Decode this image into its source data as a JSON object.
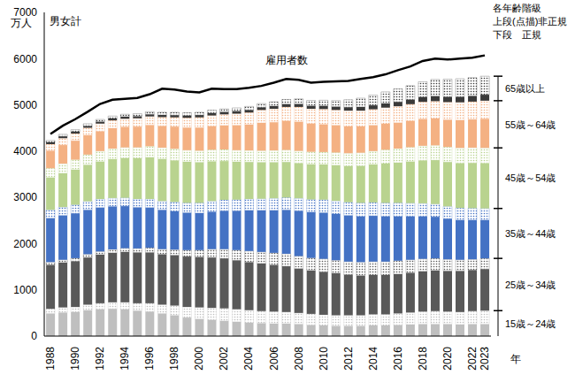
{
  "chart_data": {
    "type": "bar",
    "stacked": true,
    "y_unit_label": "万人",
    "x_label": "年",
    "annotations": [
      "男女計",
      "各年齢階級",
      "上段(点描)非正規",
      "下段　正規"
    ],
    "categories": [
      "1988",
      null,
      "1990",
      null,
      "1992",
      null,
      "1994",
      null,
      "1996",
      null,
      "1998",
      null,
      "2000",
      null,
      "2002",
      null,
      "2004",
      null,
      "2006",
      null,
      "2008",
      null,
      "2010",
      null,
      "2012",
      null,
      "2014",
      null,
      "2016",
      null,
      "2018",
      null,
      "2020",
      null,
      "2022",
      "2023"
    ],
    "ylim": [
      0,
      7000
    ],
    "yticks": [
      0,
      1000,
      2000,
      3000,
      4000,
      5000,
      6000,
      7000
    ],
    "series": [
      {
        "name": "15歳～24歳",
        "color": "#bfbfbf",
        "values": [
          490,
          510,
          520,
          560,
          580,
          590,
          580,
          550,
          530,
          490,
          450,
          400,
          370,
          350,
          330,
          310,
          290,
          280,
          270,
          270,
          260,
          240,
          230,
          220,
          220,
          220,
          230,
          230,
          240,
          250,
          260,
          260,
          260,
          250,
          260,
          260
        ]
      },
      {
        "name": "15歳～24歳",
        "color": "#bfbfbf",
        "marker": "dots",
        "values": [
          100,
          110,
          110,
          120,
          130,
          140,
          150,
          160,
          180,
          190,
          210,
          230,
          250,
          260,
          270,
          270,
          270,
          260,
          260,
          250,
          240,
          240,
          230,
          230,
          230,
          230,
          240,
          240,
          250,
          260,
          270,
          280,
          270,
          270,
          280,
          290
        ]
      },
      {
        "name": "25歳～34歳",
        "color": "#595959",
        "values": [
          950,
          970,
          990,
          1020,
          1050,
          1070,
          1090,
          1100,
          1100,
          1090,
          1090,
          1090,
          1090,
          1090,
          1080,
          1060,
          1040,
          1030,
          1010,
          990,
          960,
          940,
          930,
          910,
          880,
          860,
          850,
          850,
          850,
          860,
          870,
          880,
          880,
          890,
          890,
          900
        ]
      },
      {
        "name": "25歳～34歳",
        "color": "#595959",
        "marker": "dots",
        "values": [
          60,
          60,
          65,
          70,
          70,
          75,
          80,
          85,
          100,
          110,
          120,
          140,
          150,
          180,
          200,
          220,
          240,
          250,
          260,
          270,
          270,
          270,
          280,
          280,
          280,
          290,
          290,
          290,
          290,
          280,
          270,
          260,
          250,
          240,
          230,
          230
        ]
      },
      {
        "name": "35歳～44歳",
        "color": "#4472c4",
        "values": [
          950,
          960,
          970,
          960,
          950,
          930,
          910,
          890,
          870,
          850,
          830,
          810,
          800,
          810,
          830,
          850,
          880,
          900,
          920,
          950,
          980,
          990,
          1000,
          1000,
          1000,
          990,
          990,
          980,
          960,
          940,
          920,
          900,
          880,
          860,
          850,
          830
        ]
      },
      {
        "name": "35歳～44歳",
        "color": "#4472c4",
        "marker": "dots",
        "values": [
          180,
          180,
          185,
          185,
          185,
          180,
          180,
          180,
          185,
          190,
          200,
          210,
          220,
          230,
          235,
          240,
          245,
          250,
          260,
          265,
          270,
          275,
          280,
          285,
          285,
          290,
          290,
          290,
          290,
          285,
          280,
          275,
          265,
          260,
          255,
          250
        ]
      },
      {
        "name": "45歳～54歳",
        "color": "#b9d38f",
        "values": [
          700,
          730,
          760,
          790,
          810,
          840,
          860,
          880,
          900,
          910,
          900,
          890,
          880,
          860,
          840,
          820,
          800,
          790,
          780,
          770,
          760,
          760,
          760,
          770,
          780,
          800,
          820,
          850,
          870,
          900,
          930,
          950,
          960,
          970,
          980,
          980
        ]
      },
      {
        "name": "45歳～54歳",
        "color": "#b9d38f",
        "marker": "dots",
        "values": [
          200,
          210,
          215,
          220,
          225,
          230,
          230,
          235,
          240,
          245,
          250,
          250,
          250,
          250,
          250,
          250,
          250,
          250,
          255,
          260,
          265,
          270,
          270,
          275,
          280,
          285,
          290,
          300,
          305,
          310,
          315,
          320,
          325,
          330,
          330,
          330
        ]
      },
      {
        "name": "55歳～64歳",
        "color": "#f4b183",
        "values": [
          380,
          400,
          410,
          420,
          430,
          440,
          445,
          450,
          460,
          470,
          480,
          490,
          500,
          510,
          520,
          540,
          560,
          600,
          610,
          630,
          630,
          610,
          600,
          590,
          580,
          570,
          560,
          560,
          560,
          570,
          580,
          580,
          590,
          600,
          610,
          630
        ]
      },
      {
        "name": "55歳～64歳",
        "color": "#f4b183",
        "marker": "dots",
        "values": [
          140,
          150,
          155,
          160,
          165,
          170,
          175,
          180,
          185,
          190,
          200,
          210,
          220,
          230,
          240,
          250,
          260,
          280,
          290,
          300,
          320,
          320,
          330,
          330,
          340,
          340,
          345,
          350,
          355,
          360,
          370,
          375,
          380,
          385,
          385,
          390
        ]
      },
      {
        "name": "65歳以上",
        "color": "#3a3a3a",
        "values": [
          40,
          40,
          40,
          40,
          42,
          43,
          45,
          45,
          46,
          47,
          48,
          50,
          50,
          52,
          54,
          55,
          56,
          58,
          60,
          62,
          65,
          66,
          70,
          72,
          75,
          80,
          85,
          90,
          95,
          100,
          105,
          110,
          115,
          120,
          125,
          130
        ]
      },
      {
        "name": "65歳以上",
        "color": "#3a3a3a",
        "marker": "dots",
        "values": [
          40,
          42,
          44,
          46,
          48,
          50,
          52,
          54,
          56,
          58,
          60,
          60,
          60,
          62,
          64,
          70,
          75,
          80,
          90,
          100,
          110,
          115,
          120,
          130,
          160,
          190,
          220,
          250,
          280,
          300,
          330,
          360,
          380,
          390,
          395,
          400
        ]
      },
      {
        "name": "雇用者数",
        "type": "line",
        "color": "#000000",
        "values": [
          4370,
          4550,
          4690,
          4850,
          5020,
          5110,
          5130,
          5150,
          5230,
          5350,
          5330,
          5290,
          5270,
          5350,
          5340,
          5340,
          5370,
          5410,
          5480,
          5560,
          5540,
          5480,
          5500,
          5510,
          5520,
          5560,
          5600,
          5660,
          5750,
          5830,
          5950,
          6000,
          5980,
          6000,
          6020,
          6070
        ]
      }
    ]
  }
}
